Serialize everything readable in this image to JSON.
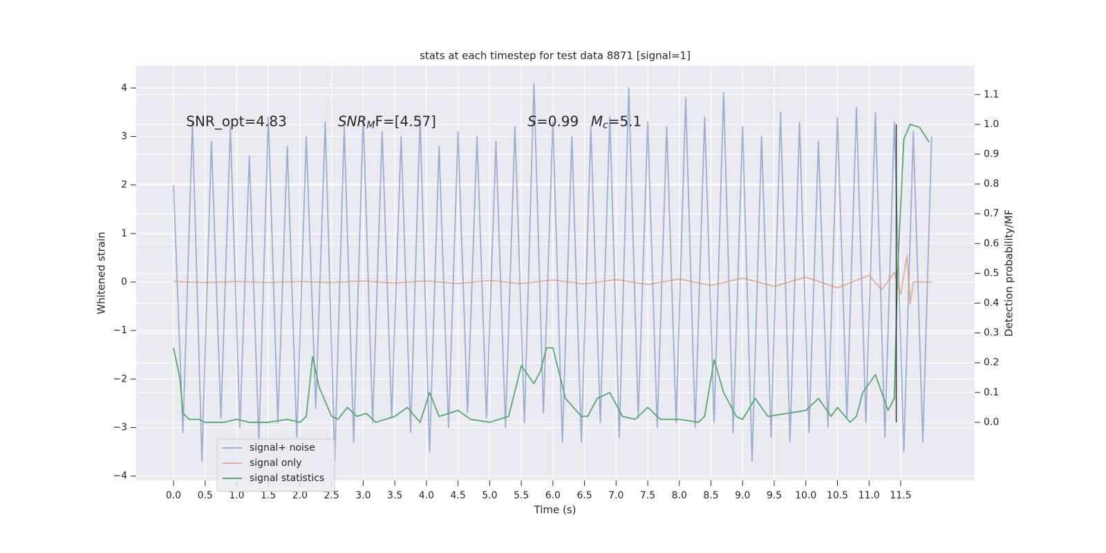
{
  "chart_data": {
    "type": "line",
    "title": "stats at each timestep for test data 8871 [signal=1]",
    "x_label": "Time (s)",
    "y_label": "Whitened strain",
    "y2_label": "Detection probability/MF",
    "xlim": [
      -0.59,
      12.67
    ],
    "ylim": [
      -4.09,
      4.46
    ],
    "y2lim": [
      -0.195,
      1.197
    ],
    "xticks": [
      {
        "value": 0,
        "label": "0.0"
      },
      0.5,
      {
        "value": 1,
        "label": "1.0"
      },
      1.5,
      {
        "value": 2,
        "label": "2.0"
      },
      2.5,
      {
        "value": 3,
        "label": "3.0"
      },
      3.5,
      {
        "value": 4,
        "label": "4.0"
      },
      4.5,
      {
        "value": 5,
        "label": "5.0"
      },
      5.5,
      {
        "value": 6,
        "label": "6.0"
      },
      6.5,
      {
        "value": 7,
        "label": "7.0"
      },
      7.5,
      {
        "value": 8,
        "label": "8.0"
      },
      8.5,
      {
        "value": 9,
        "label": "9.0"
      },
      9.5,
      {
        "value": 10,
        "label": "10.0"
      },
      10.5,
      {
        "value": 11,
        "label": "11.0"
      },
      11.5
    ],
    "yticks": [
      {
        "value": -4,
        "label": "−4"
      },
      {
        "value": -3,
        "label": "−3"
      },
      {
        "value": -2,
        "label": "−2"
      },
      {
        "value": -1,
        "label": "−1"
      },
      0,
      1,
      2,
      3,
      4
    ],
    "y2ticks": [
      {
        "value": 0,
        "label": "0.0"
      },
      0.1,
      0.2,
      0.3,
      0.4,
      0.5,
      0.6,
      0.7,
      0.8,
      0.9,
      {
        "value": 1,
        "label": "1.0"
      },
      1.1
    ],
    "grid": true,
    "legend": "lower left",
    "vline": 11.43,
    "vline_color": "#333333",
    "annotations": [
      {
        "x": 0.2,
        "y": 3.3,
        "parts": [
          {
            "text": "SNR_opt=4.83"
          }
        ]
      },
      {
        "x": 2.6,
        "y": 3.3,
        "parts": [
          {
            "text": "SNR",
            "style": "italic"
          },
          {
            "text": "M",
            "style": "sub"
          },
          {
            "text": "F=[4.57]"
          }
        ]
      },
      {
        "x": 5.6,
        "y": 3.3,
        "parts": [
          {
            "text": "S",
            "style": "italic"
          },
          {
            "text": "=0.99"
          }
        ]
      },
      {
        "x": 6.6,
        "y": 3.3,
        "parts": [
          {
            "text": "M",
            "style": "italic"
          },
          {
            "text": "c",
            "style": "sub"
          },
          {
            "text": "=5.1"
          }
        ]
      }
    ],
    "series": [
      {
        "name": "signal+ noise",
        "color": "#4c72b0",
        "opacity": 0.5,
        "x": [
          0,
          0.15,
          0.3,
          0.45,
          0.6,
          0.75,
          0.9,
          1.05,
          1.2,
          1.35,
          1.5,
          1.65,
          1.8,
          1.95,
          2.1,
          2.25,
          2.4,
          2.55,
          2.7,
          2.85,
          3,
          3.15,
          3.3,
          3.45,
          3.6,
          3.75,
          3.9,
          4.05,
          4.2,
          4.35,
          4.5,
          4.65,
          4.8,
          4.95,
          5.1,
          5.25,
          5.4,
          5.55,
          5.7,
          5.85,
          6,
          6.15,
          6.3,
          6.45,
          6.6,
          6.75,
          6.9,
          7.05,
          7.2,
          7.35,
          7.5,
          7.65,
          7.8,
          7.95,
          8.1,
          8.25,
          8.4,
          8.55,
          8.7,
          8.85,
          9,
          9.15,
          9.3,
          9.45,
          9.6,
          9.75,
          9.9,
          10.05,
          10.2,
          10.35,
          10.5,
          10.65,
          10.8,
          10.95,
          11.1,
          11.25,
          11.4,
          11.55,
          11.7,
          11.85,
          11.99
        ],
        "values": [
          2.0,
          -3.1,
          3.3,
          -3.7,
          2.9,
          -2.8,
          3.2,
          -3.0,
          2.6,
          -3.3,
          3.4,
          -2.9,
          2.8,
          -3.2,
          3.0,
          -2.6,
          3.3,
          -3.7,
          3.2,
          -3.3,
          3.4,
          -2.9,
          3.1,
          -2.8,
          3.0,
          -3.1,
          3.4,
          -3.5,
          2.8,
          -3.0,
          3.1,
          -2.7,
          3.0,
          -2.8,
          2.9,
          -3.0,
          3.2,
          -2.9,
          4.1,
          -2.7,
          3.3,
          -3.3,
          3.0,
          -3.3,
          3.2,
          -2.9,
          3.4,
          -3.2,
          4.0,
          -2.8,
          3.3,
          -3.0,
          3.2,
          -2.9,
          3.8,
          -3.0,
          3.4,
          -2.9,
          3.9,
          -3.1,
          3.2,
          -3.7,
          3.0,
          -3.2,
          3.5,
          -3.3,
          3.3,
          -3.1,
          2.9,
          -3.0,
          3.4,
          -2.8,
          3.6,
          -2.9,
          3.5,
          -3.2,
          3.3,
          -3.5,
          3.1,
          -3.3,
          3.0
        ]
      },
      {
        "name": "signal only",
        "color": "#dd8452",
        "opacity": 0.6,
        "x": [
          0,
          0.5,
          1,
          1.5,
          2,
          2.5,
          3,
          3.5,
          4,
          4.5,
          5,
          5.5,
          6,
          6.5,
          7,
          7.5,
          8,
          8.5,
          9,
          9.5,
          10,
          10.5,
          11,
          11.2,
          11.4,
          11.5,
          11.6,
          11.65,
          11.7,
          12.0
        ],
        "values": [
          0.01,
          -0.01,
          0.01,
          -0.01,
          0.01,
          -0.01,
          0.02,
          -0.02,
          0.02,
          -0.03,
          0.03,
          -0.03,
          0.04,
          -0.04,
          0.05,
          -0.05,
          0.06,
          -0.07,
          0.08,
          -0.09,
          0.1,
          -0.12,
          0.14,
          -0.16,
          0.2,
          -0.25,
          0.55,
          -0.45,
          0.0,
          0.0
        ]
      },
      {
        "name": "signal statistics",
        "color": "#55a868",
        "opacity": 1,
        "axis": "y2",
        "x": [
          0,
          0.1,
          0.15,
          0.25,
          0.4,
          0.5,
          0.8,
          1.0,
          1.2,
          1.5,
          1.8,
          2.0,
          2.1,
          2.2,
          2.3,
          2.5,
          2.6,
          2.75,
          2.9,
          3.05,
          3.2,
          3.5,
          3.7,
          3.9,
          4.05,
          4.2,
          4.5,
          4.7,
          5.0,
          5.3,
          5.5,
          5.7,
          5.8,
          5.9,
          6.0,
          6.2,
          6.45,
          6.55,
          6.7,
          6.9,
          7.1,
          7.3,
          7.5,
          7.7,
          8.0,
          8.3,
          8.4,
          8.55,
          8.7,
          8.9,
          9.0,
          9.2,
          9.4,
          9.7,
          10.0,
          10.2,
          10.4,
          10.5,
          10.7,
          10.8,
          10.9,
          11.1,
          11.2,
          11.3,
          11.4,
          11.45,
          11.55,
          11.65,
          11.8,
          11.95
        ],
        "values": [
          0.25,
          0.15,
          0.03,
          0.01,
          0.01,
          0.0,
          0.0,
          0.01,
          0.0,
          0.0,
          0.01,
          0.0,
          0.02,
          0.22,
          0.12,
          0.02,
          0.01,
          0.05,
          0.02,
          0.03,
          0.0,
          0.02,
          0.05,
          0.0,
          0.1,
          0.02,
          0.04,
          0.01,
          0.0,
          0.02,
          0.19,
          0.13,
          0.17,
          0.25,
          0.25,
          0.08,
          0.02,
          0.02,
          0.08,
          0.1,
          0.02,
          0.01,
          0.05,
          0.01,
          0.01,
          0.0,
          0.02,
          0.21,
          0.1,
          0.02,
          0.01,
          0.08,
          0.02,
          0.03,
          0.04,
          0.08,
          0.02,
          0.05,
          0.0,
          0.02,
          0.1,
          0.16,
          0.1,
          0.04,
          0.08,
          0.5,
          0.95,
          1.0,
          0.99,
          0.94
        ]
      }
    ]
  }
}
